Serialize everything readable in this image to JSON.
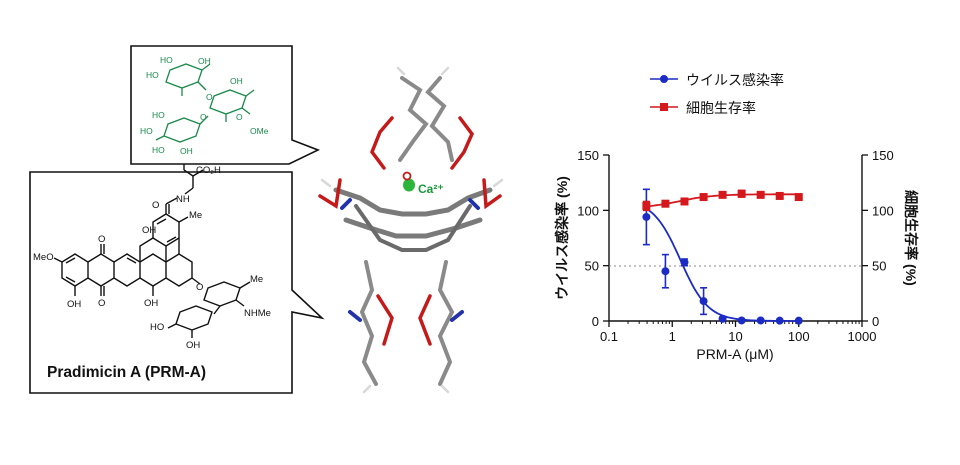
{
  "left_panel": {
    "compound_name": "Pradimicin A (PRM-A)",
    "group_labels": {
      "acid": "CO₂H",
      "amide_nh": "NH",
      "carbonyl_o": "O",
      "methyl": "Me",
      "methoxy": "MeO",
      "oh": "OH",
      "nhme": "NHMe",
      "ome": "OMe",
      "ho": "HO"
    },
    "ion_label": "Ca²⁺",
    "colors": {
      "sugar": "#1a8a4a",
      "ion": "#1a9a3a",
      "ion_dot": "#2bb53a"
    }
  },
  "chart_data": {
    "type": "scatter",
    "xlabel": "PRM-A (μM)",
    "ylabel_left": "ウイルス感染率 (%)",
    "ylabel_right": "細胞生存率 (%)",
    "xscale": "log",
    "xlim": [
      0.1,
      1000
    ],
    "ylim": [
      0,
      150
    ],
    "x_ticks": [
      "0.1",
      "1",
      "10",
      "100",
      "1000"
    ],
    "y_ticks": [
      "0",
      "50",
      "100",
      "150"
    ],
    "reference_line_y": 50,
    "legend_position": "top",
    "series": [
      {
        "name": "ウイルス感染率",
        "color": "#1c2bc4",
        "marker": "circle",
        "x": [
          0.39,
          0.78,
          1.56,
          3.13,
          6.25,
          12.5,
          25,
          50,
          100
        ],
        "y": [
          94,
          45,
          53,
          18,
          2,
          0.5,
          0.5,
          0.3,
          0.3
        ],
        "err": [
          25,
          15,
          3,
          12,
          1.5,
          0,
          0,
          0,
          0
        ],
        "fit": true
      },
      {
        "name": "細胞生存率",
        "color": "#d4181c",
        "marker": "square",
        "x": [
          0.39,
          0.78,
          1.56,
          3.13,
          6.25,
          12.5,
          25,
          50,
          100
        ],
        "y": [
          104,
          106,
          108,
          112,
          114,
          115,
          114,
          113,
          112
        ],
        "err": [
          4,
          2,
          2,
          2,
          2,
          3,
          2,
          2,
          2
        ],
        "fit": true
      }
    ]
  }
}
